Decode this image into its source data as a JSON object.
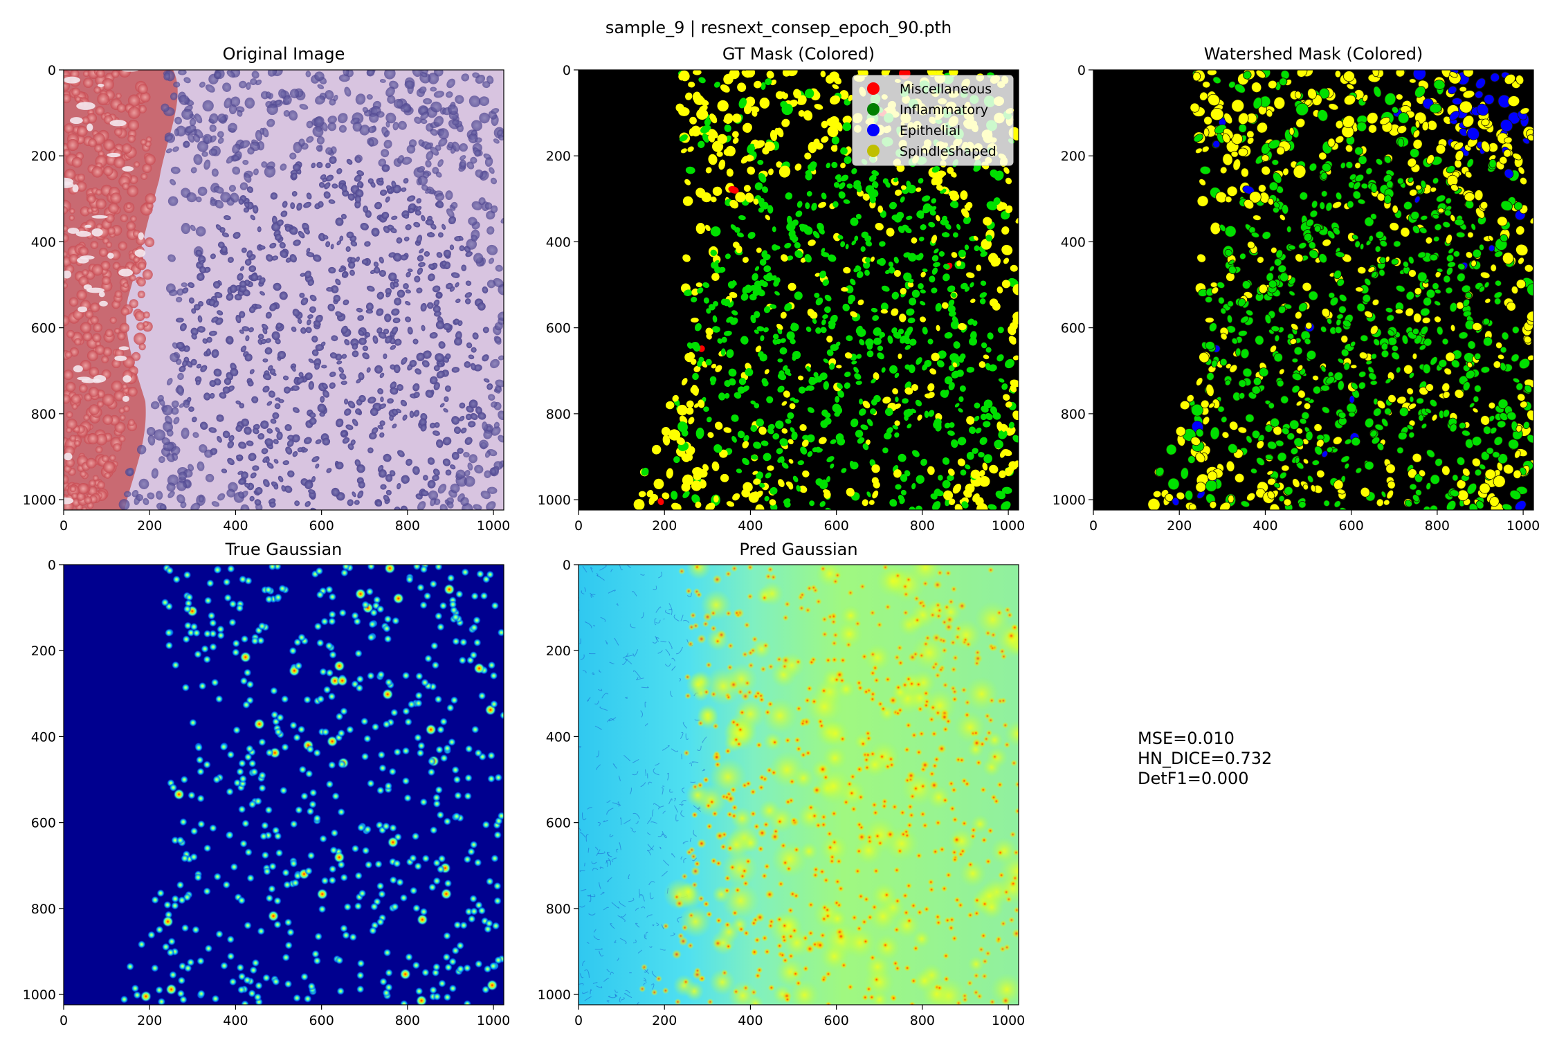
{
  "figure": {
    "suptitle": "sample_9 | resnext_consep_epoch_90.pth"
  },
  "panels": [
    {
      "id": "original",
      "title": "Original Image"
    },
    {
      "id": "gt_mask",
      "title": "GT Mask (Colored)"
    },
    {
      "id": "watershed",
      "title": "Watershed Mask (Colored)"
    },
    {
      "id": "true_gauss",
      "title": "True Gaussian"
    },
    {
      "id": "pred_gauss",
      "title": "Pred Gaussian"
    }
  ],
  "legend": {
    "placement": "top-right of GT Mask panel",
    "entries": [
      {
        "label": "Miscellaneous",
        "color": "#ff0000"
      },
      {
        "label": "Inflammatory",
        "color": "#008000"
      },
      {
        "label": "Epithelial",
        "color": "#0000ff"
      },
      {
        "label": "Spindleshaped",
        "color": "#bfbf00"
      }
    ]
  },
  "metrics": {
    "lines": [
      "MSE=0.010",
      "HN_DICE=0.732",
      "DetF1=0.000"
    ]
  },
  "colors": {
    "background": "#ffffff",
    "mask_bg": "#000000",
    "inflammatory_fill": "#00e000",
    "spindle_fill": "#ffff00",
    "epithelial_fill": "#0000ff",
    "misc_fill": "#ff0000",
    "gauss_bg": "#00008f",
    "pred_bg": "#00e0ff"
  },
  "chart_data": {
    "type": "image-grid",
    "x_ticks": [
      0,
      200,
      400,
      600,
      800,
      1000
    ],
    "y_ticks": [
      0,
      200,
      400,
      600,
      800,
      1000
    ],
    "xlim": [
      0,
      1024
    ],
    "ylim": [
      1024,
      0
    ],
    "grid": false
  }
}
